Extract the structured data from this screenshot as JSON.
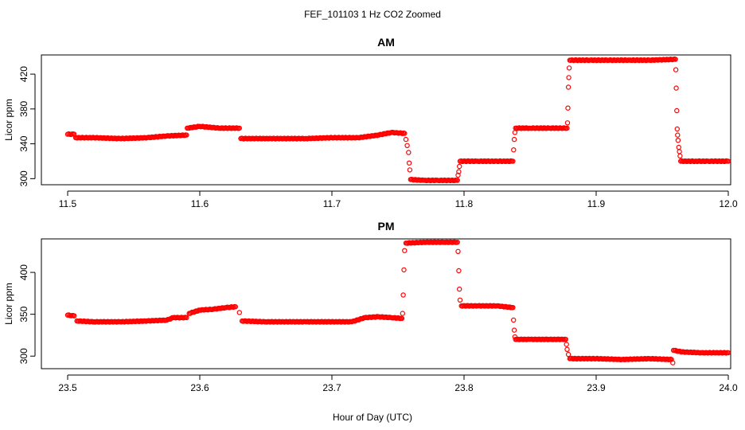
{
  "figure": {
    "suptitle": "FEF_101103  1 Hz CO2 Zoomed",
    "xlabel": "Hour of Day (UTC)"
  },
  "colors": {
    "points": "#ff0000",
    "axes": "#000000"
  },
  "chart_data": [
    {
      "type": "scatter",
      "title": "AM",
      "xlabel": "",
      "ylabel": "Licor ppm",
      "xlim": [
        11.5,
        12.0
      ],
      "ylim": [
        293,
        442
      ],
      "x_ticks": [
        "11.5",
        "11.6",
        "11.7",
        "11.8",
        "11.9",
        "12.0"
      ],
      "y_ticks": [
        "300",
        "340",
        "380",
        "420"
      ],
      "marker": "open-circle",
      "series": [
        {
          "points": [
            [
              11.5,
              351
            ],
            [
              11.505,
              351
            ],
            [
              11.506,
              347
            ],
            [
              11.52,
              347
            ],
            [
              11.54,
              346
            ],
            [
              11.56,
              347
            ],
            [
              11.575,
              349
            ],
            [
              11.59,
              350
            ],
            [
              11.5905,
              358
            ],
            [
              11.6,
              360
            ],
            [
              11.615,
              358
            ],
            [
              11.63,
              358
            ],
            [
              11.631,
              346
            ],
            [
              11.65,
              346
            ],
            [
              11.68,
              346
            ],
            [
              11.7,
              347
            ],
            [
              11.72,
              347
            ],
            [
              11.735,
              350
            ],
            [
              11.745,
              353
            ],
            [
              11.755,
              352
            ],
            [
              11.756,
              345
            ],
            [
              11.757,
              338
            ],
            [
              11.758,
              330
            ],
            [
              11.7585,
              318
            ],
            [
              11.759,
              310
            ],
            [
              11.7595,
              299
            ],
            [
              11.77,
              298
            ],
            [
              11.78,
              298
            ],
            [
              11.795,
              298
            ],
            [
              11.7955,
              304
            ],
            [
              11.796,
              308
            ],
            [
              11.7965,
              314
            ],
            [
              11.797,
              320
            ],
            [
              11.81,
              320
            ],
            [
              11.825,
              320
            ],
            [
              11.837,
              320
            ],
            [
              11.8375,
              333
            ],
            [
              11.838,
              345
            ],
            [
              11.8385,
              353
            ],
            [
              11.839,
              358
            ],
            [
              11.85,
              358
            ],
            [
              11.865,
              358
            ],
            [
              11.878,
              358
            ],
            [
              11.8783,
              364
            ],
            [
              11.8786,
              381
            ],
            [
              11.879,
              405
            ],
            [
              11.8793,
              416
            ],
            [
              11.8796,
              427
            ],
            [
              11.88,
              436
            ],
            [
              11.895,
              436
            ],
            [
              11.91,
              436
            ],
            [
              11.925,
              436
            ],
            [
              11.94,
              436
            ],
            [
              11.96,
              437
            ],
            [
              11.9603,
              425
            ],
            [
              11.9606,
              404
            ],
            [
              11.961,
              378
            ],
            [
              11.9613,
              357
            ],
            [
              11.9616,
              350
            ],
            [
              11.962,
              344
            ],
            [
              11.9625,
              336
            ],
            [
              11.963,
              331
            ],
            [
              11.9635,
              326
            ],
            [
              11.964,
              320
            ],
            [
              11.975,
              320
            ],
            [
              11.985,
              320
            ],
            [
              12.0,
              320
            ]
          ]
        }
      ]
    },
    {
      "type": "scatter",
      "title": "PM",
      "xlabel": "",
      "ylabel": "Licor ppm",
      "xlim": [
        23.5,
        24.0
      ],
      "ylim": [
        285,
        440
      ],
      "x_ticks": [
        "23.5",
        "23.6",
        "23.7",
        "23.8",
        "23.9",
        "24.0"
      ],
      "y_ticks": [
        "300",
        "350",
        "400"
      ],
      "marker": "open-circle",
      "series": [
        {
          "points": [
            [
              23.5,
              349
            ],
            [
              23.505,
              348
            ],
            [
              23.507,
              342
            ],
            [
              23.52,
              341
            ],
            [
              23.54,
              341
            ],
            [
              23.56,
              342
            ],
            [
              23.575,
              343
            ],
            [
              23.58,
              346
            ],
            [
              23.59,
              346
            ],
            [
              23.592,
              351
            ],
            [
              23.6,
              355
            ],
            [
              23.61,
              356
            ],
            [
              23.62,
              358
            ],
            [
              23.627,
              359
            ],
            [
              23.63,
              352
            ],
            [
              23.632,
              342
            ],
            [
              23.65,
              341
            ],
            [
              23.68,
              341
            ],
            [
              23.715,
              341
            ],
            [
              23.725,
              346
            ],
            [
              23.735,
              347
            ],
            [
              23.745,
              346
            ],
            [
              23.753,
              345
            ],
            [
              23.7535,
              351
            ],
            [
              23.754,
              373
            ],
            [
              23.7545,
              403
            ],
            [
              23.755,
              426
            ],
            [
              23.756,
              435
            ],
            [
              23.77,
              436
            ],
            [
              23.785,
              436
            ],
            [
              23.795,
              436
            ],
            [
              23.7955,
              425
            ],
            [
              23.796,
              402
            ],
            [
              23.7965,
              380
            ],
            [
              23.797,
              367
            ],
            [
              23.798,
              360
            ],
            [
              23.81,
              360
            ],
            [
              23.825,
              360
            ],
            [
              23.837,
              358
            ],
            [
              23.8375,
              343
            ],
            [
              23.838,
              331
            ],
            [
              23.8385,
              323
            ],
            [
              23.839,
              320
            ],
            [
              23.85,
              320
            ],
            [
              23.865,
              320
            ],
            [
              23.877,
              320
            ],
            [
              23.8775,
              314
            ],
            [
              23.878,
              308
            ],
            [
              23.879,
              302
            ],
            [
              23.88,
              297
            ],
            [
              23.9,
              297
            ],
            [
              23.92,
              296
            ],
            [
              23.94,
              297
            ],
            [
              23.957,
              296
            ],
            [
              23.958,
              292
            ],
            [
              23.9585,
              307
            ],
            [
              23.965,
              305
            ],
            [
              23.98,
              304
            ],
            [
              24.0,
              304
            ]
          ]
        }
      ]
    }
  ]
}
